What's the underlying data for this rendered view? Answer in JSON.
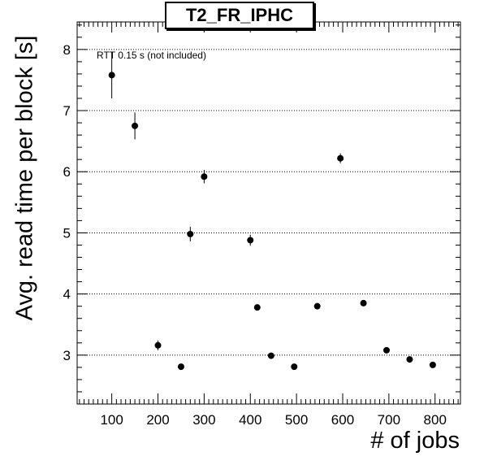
{
  "chart_data": {
    "type": "scatter",
    "title": "T2_FR_IPHC",
    "xlabel": "# of jobs",
    "ylabel": "Avg. read time per block [s]",
    "annotation": "RTT 0.15 s (not included)",
    "xlim": [
      25,
      855
    ],
    "ylim": [
      2.2,
      8.45
    ],
    "x_ticks": [
      100,
      200,
      300,
      400,
      500,
      600,
      700,
      800
    ],
    "y_ticks": [
      3,
      4,
      5,
      6,
      7,
      8
    ],
    "grid": "horizontal dotted at major y ticks",
    "points": [
      {
        "x": 100,
        "y": 7.58,
        "err": 0.38
      },
      {
        "x": 150,
        "y": 6.75,
        "err": 0.22
      },
      {
        "x": 200,
        "y": 3.16,
        "err": 0.08
      },
      {
        "x": 250,
        "y": 2.81,
        "err": 0.04
      },
      {
        "x": 270,
        "y": 4.98,
        "err": 0.12
      },
      {
        "x": 300,
        "y": 5.92,
        "err": 0.11
      },
      {
        "x": 400,
        "y": 4.88,
        "err": 0.09
      },
      {
        "x": 415,
        "y": 3.78,
        "err": 0.05
      },
      {
        "x": 445,
        "y": 2.99,
        "err": 0.03
      },
      {
        "x": 495,
        "y": 2.81,
        "err": 0.03
      },
      {
        "x": 545,
        "y": 3.8,
        "err": 0.03
      },
      {
        "x": 595,
        "y": 6.22,
        "err": 0.08
      },
      {
        "x": 645,
        "y": 3.85,
        "err": 0.03
      },
      {
        "x": 695,
        "y": 3.08,
        "err": 0.03
      },
      {
        "x": 745,
        "y": 2.93,
        "err": 0.03
      },
      {
        "x": 795,
        "y": 2.84,
        "err": 0.03
      }
    ]
  }
}
